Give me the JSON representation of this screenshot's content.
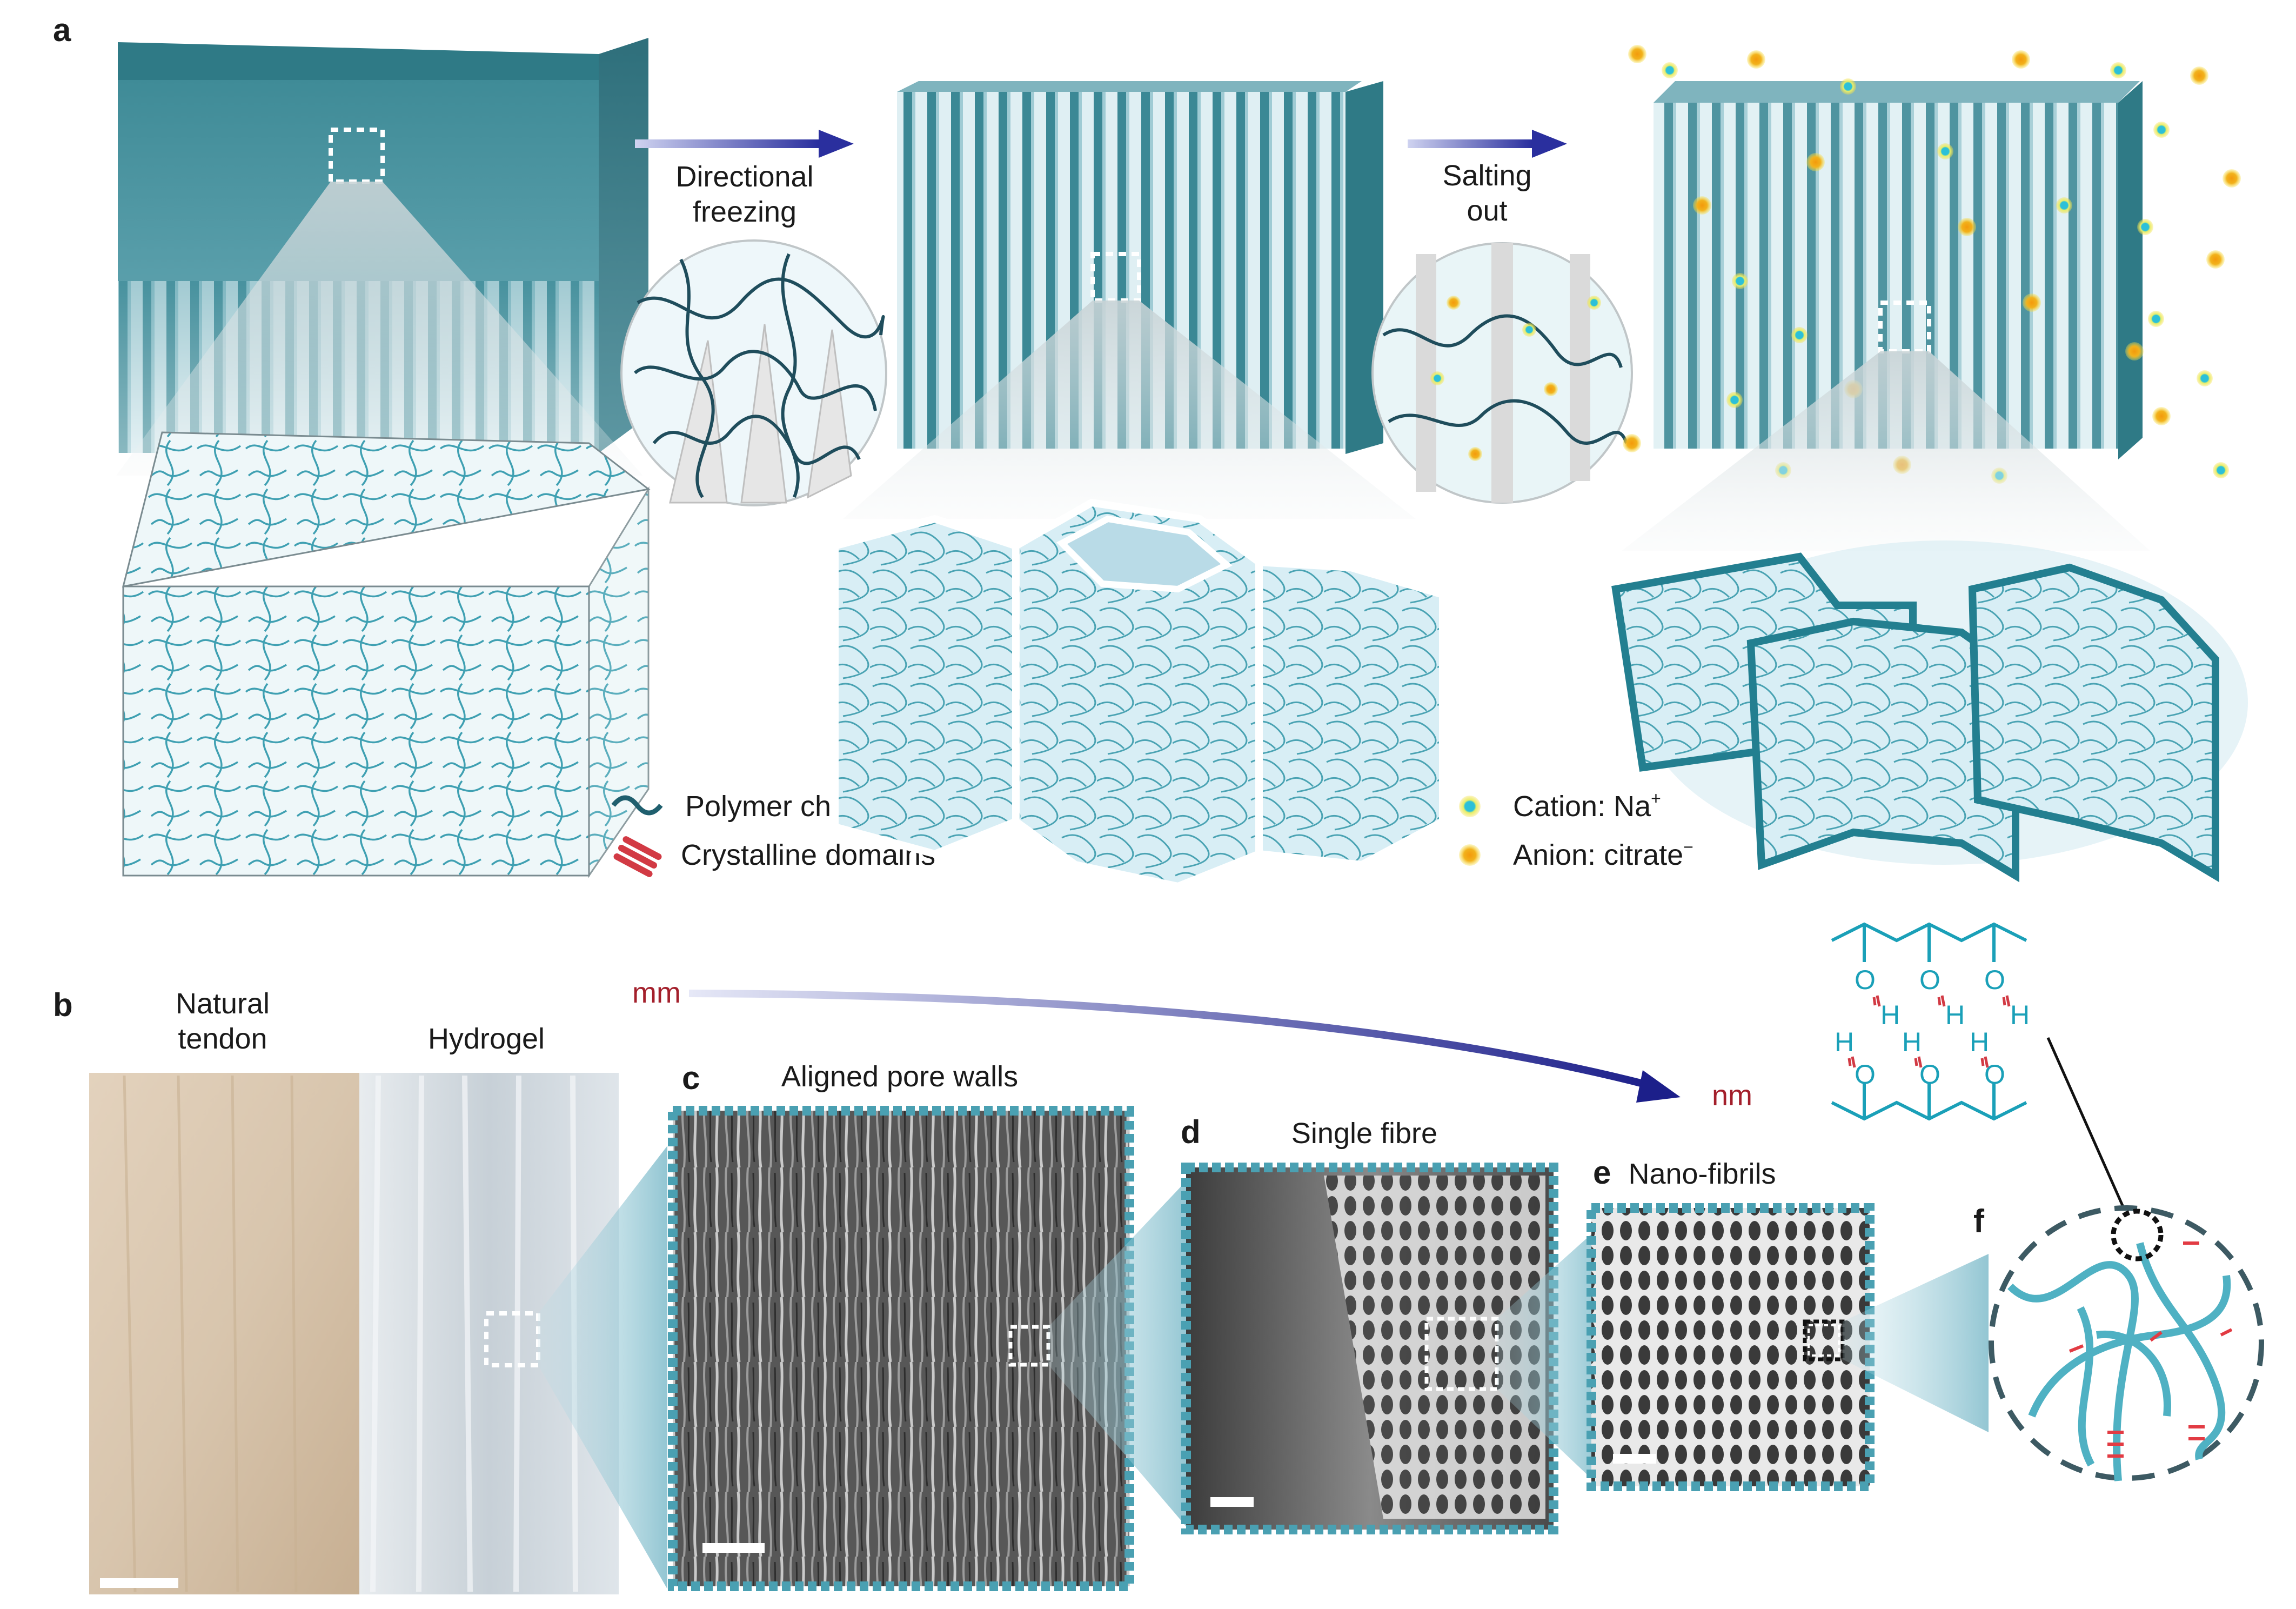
{
  "panels": {
    "a": "a",
    "b": "b",
    "c": "c",
    "d": "d",
    "e": "e",
    "f": "f"
  },
  "steps": {
    "directional_freezing": [
      "Directional",
      "freezing"
    ],
    "salting_out": [
      "Salting",
      "out"
    ]
  },
  "legend": {
    "polymer_chain": "Polymer chain",
    "crystalline_domains": "Crystalline domains",
    "cation_label": "Cation: Na",
    "cation_sup": "+",
    "anion_label": "Anion: citrate",
    "anion_sup": "−"
  },
  "scale": {
    "start": "mm",
    "end": "nm"
  },
  "images": {
    "natural_tendon": [
      "Natural",
      "tendon"
    ],
    "hydrogel": "Hydrogel",
    "aligned_pore_walls": "Aligned pore walls",
    "single_fibre": "Single fibre",
    "nano_fibrils": "Nano-fibrils"
  },
  "chemistry": {
    "oxygen": "O",
    "hydrogen": "H"
  },
  "colors": {
    "teal": "#2a8a98",
    "dark_teal": "#1f5f6e",
    "light_blue": "#cfe9f2",
    "cation": "#23b3c9",
    "anion": "#f0a81a",
    "crystalline": "#d23a44",
    "arrow": "#2a2f9e",
    "scale_text": "#a31f2b",
    "frame": "#4aa0b2"
  }
}
